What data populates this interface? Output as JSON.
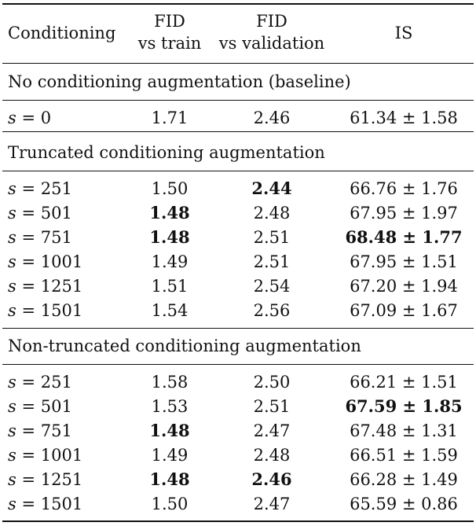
{
  "headers": {
    "conditioning": "Conditioning",
    "fid_train": [
      "FID",
      "vs train"
    ],
    "fid_val": [
      "FID",
      "vs validation"
    ],
    "is": "IS"
  },
  "sections": [
    {
      "title": "No conditioning augmentation (baseline)",
      "rows": [
        {
          "s": "0",
          "fid_train": "1.71",
          "fid_val": "2.46",
          "is": "61.34 ± 1.58",
          "bold": []
        }
      ]
    },
    {
      "title": "Truncated conditioning augmentation",
      "rows": [
        {
          "s": "251",
          "fid_train": "1.50",
          "fid_val": "2.44",
          "is": "66.76 ± 1.76",
          "bold": [
            "fid_val"
          ]
        },
        {
          "s": "501",
          "fid_train": "1.48",
          "fid_val": "2.48",
          "is": "67.95 ± 1.97",
          "bold": [
            "fid_train"
          ]
        },
        {
          "s": "751",
          "fid_train": "1.48",
          "fid_val": "2.51",
          "is": "68.48 ± 1.77",
          "bold": [
            "fid_train",
            "is"
          ]
        },
        {
          "s": "1001",
          "fid_train": "1.49",
          "fid_val": "2.51",
          "is": "67.95 ± 1.51",
          "bold": []
        },
        {
          "s": "1251",
          "fid_train": "1.51",
          "fid_val": "2.54",
          "is": "67.20 ± 1.94",
          "bold": []
        },
        {
          "s": "1501",
          "fid_train": "1.54",
          "fid_val": "2.56",
          "is": "67.09 ± 1.67",
          "bold": []
        }
      ]
    },
    {
      "title": "Non-truncated conditioning augmentation",
      "rows": [
        {
          "s": "251",
          "fid_train": "1.58",
          "fid_val": "2.50",
          "is": "66.21 ± 1.51",
          "bold": []
        },
        {
          "s": "501",
          "fid_train": "1.53",
          "fid_val": "2.51",
          "is": "67.59 ± 1.85",
          "bold": [
            "is"
          ]
        },
        {
          "s": "751",
          "fid_train": "1.48",
          "fid_val": "2.47",
          "is": "67.48 ± 1.31",
          "bold": [
            "fid_train"
          ]
        },
        {
          "s": "1001",
          "fid_train": "1.49",
          "fid_val": "2.48",
          "is": "66.51 ± 1.59",
          "bold": []
        },
        {
          "s": "1251",
          "fid_train": "1.48",
          "fid_val": "2.46",
          "is": "66.28 ± 1.49",
          "bold": [
            "fid_train",
            "fid_val"
          ]
        },
        {
          "s": "1501",
          "fid_train": "1.50",
          "fid_val": "2.47",
          "is": "65.59 ± 0.86",
          "bold": []
        }
      ]
    }
  ]
}
